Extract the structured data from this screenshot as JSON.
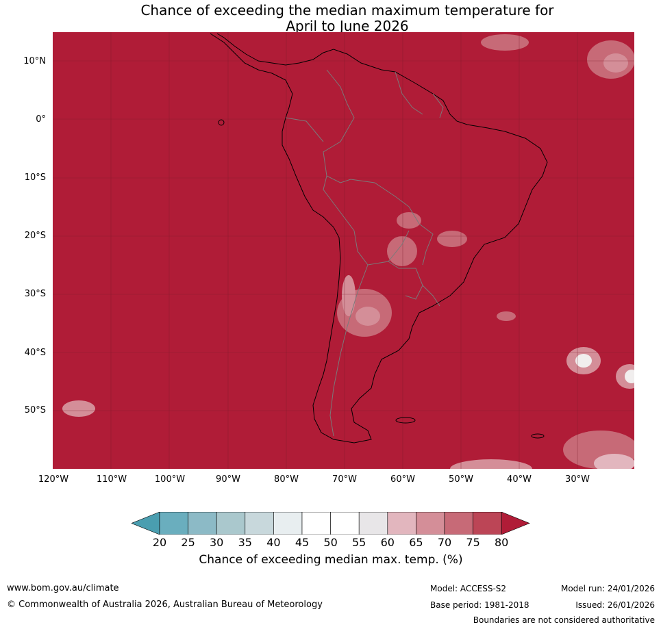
{
  "title": {
    "line1": "Chance of exceeding the median maximum temperature for",
    "line2": "April to June 2026"
  },
  "map": {
    "background_color": "#b01c37",
    "land_outline_color": "#000000",
    "border_color": "#7a7a7a",
    "lat_labels": [
      "10°N",
      "0°",
      "10°S",
      "20°S",
      "30°S",
      "40°S",
      "50°S"
    ],
    "lon_labels": [
      "120°W",
      "110°W",
      "100°W",
      "90°W",
      "80°W",
      "70°W",
      "60°W",
      "50°W",
      "40°W",
      "30°W"
    ]
  },
  "legend": {
    "tick_labels": [
      "20",
      "25",
      "30",
      "35",
      "40",
      "45",
      "50",
      "55",
      "60",
      "65",
      "70",
      "75",
      "80"
    ],
    "colors": [
      "#4a9eb0",
      "#6aaebe",
      "#8cbac6",
      "#aac8cd",
      "#c8d8dc",
      "#e8eef0",
      "#ffffff",
      "#ffffff",
      "#e8e6e8",
      "#e2b6be",
      "#d48e98",
      "#c76a77",
      "#bc4556",
      "#b01c37"
    ],
    "title": "Chance of exceeding median max. temp. (%)"
  },
  "footer": {
    "website": "www.bom.gov.au/climate",
    "copyright": "© Commonwealth of Australia 2026, Australian Bureau of Meteorology",
    "model": "Model: ACCESS-S2",
    "base_period": "Base period: 1981-2018",
    "model_run": "Model run: 24/01/2026",
    "issued": "Issued: 26/01/2026",
    "disclaimer": "Boundaries are not considered authoritative"
  }
}
